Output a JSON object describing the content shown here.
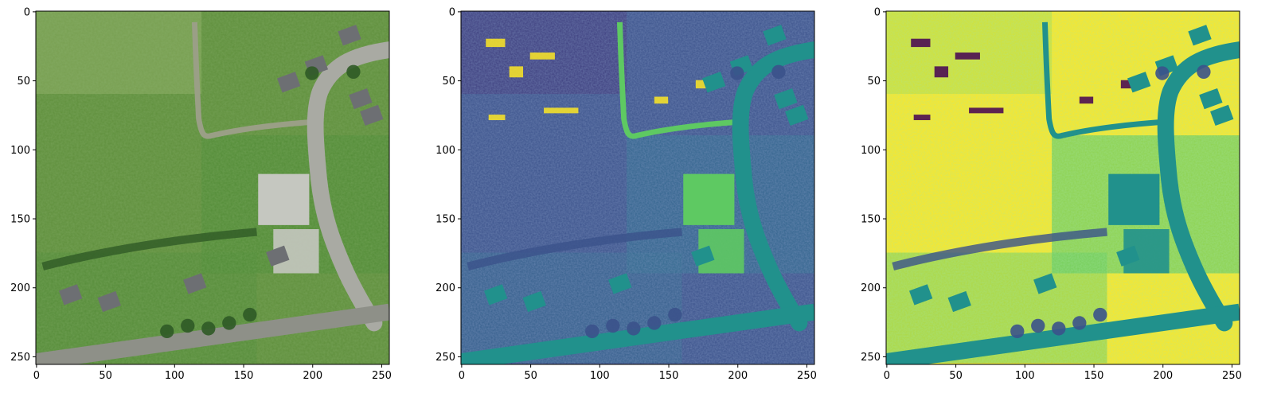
{
  "figure": {
    "panels": [
      {
        "name": "aerial-rgb",
        "kind": "rgb",
        "x_ticks": [
          "0",
          "50",
          "100",
          "150",
          "200",
          "250"
        ],
        "y_ticks": [
          "0",
          "50",
          "100",
          "150",
          "200",
          "250"
        ]
      },
      {
        "name": "index-map-1",
        "kind": "viridis-low",
        "x_ticks": [
          "0",
          "50",
          "100",
          "150",
          "200",
          "250"
        ],
        "y_ticks": [
          "0",
          "50",
          "100",
          "150",
          "200",
          "250"
        ]
      },
      {
        "name": "index-map-2",
        "kind": "viridis-high",
        "x_ticks": [
          "0",
          "50",
          "100",
          "150",
          "200",
          "250"
        ],
        "y_ticks": [
          "0",
          "50",
          "100",
          "150",
          "200",
          "250"
        ]
      }
    ],
    "axis_range": [
      0,
      256
    ],
    "tick_values": [
      0,
      50,
      100,
      150,
      200,
      250
    ],
    "colors": {
      "rgb": {
        "field": "#5f8f3c",
        "field_light": "#7ea356",
        "grass": "#4e8a35",
        "road": "#a9aaa3",
        "roof": "#6d6f73",
        "lot": "#c5c7c0",
        "trees": "#2f5a26",
        "path": "#9a9f86"
      },
      "viridis": [
        "#440154",
        "#3b528b",
        "#21918c",
        "#5ec962",
        "#fde725"
      ]
    }
  }
}
